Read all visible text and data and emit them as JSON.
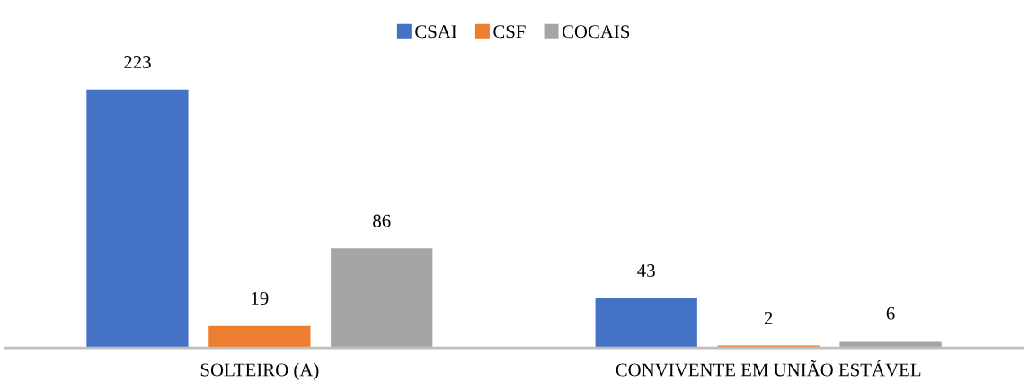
{
  "chart_data": {
    "type": "bar",
    "categories": [
      "SOLTEIRO (A)",
      "CONVIVENTE EM UNIÃO ESTÁVEL"
    ],
    "series": [
      {
        "name": "CSAI",
        "color": "#4472c4",
        "values": [
          223,
          43
        ]
      },
      {
        "name": "CSF",
        "color": "#ed7d31",
        "values": [
          19,
          2
        ]
      },
      {
        "name": "COCAIS",
        "color": "#a5a5a5",
        "values": [
          86,
          6
        ]
      }
    ],
    "data_labels": true,
    "legend": "top"
  }
}
